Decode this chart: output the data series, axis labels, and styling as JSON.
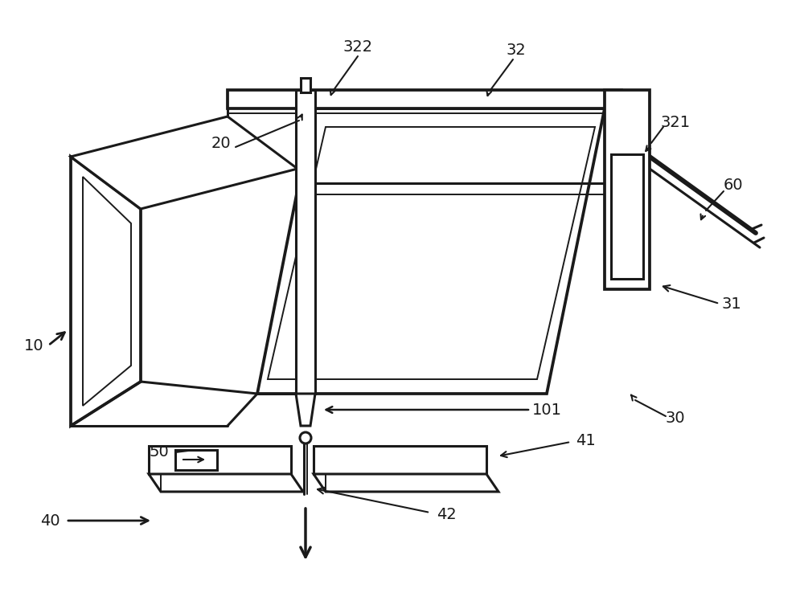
{
  "bg": "#ffffff",
  "lc": "#1a1a1a",
  "lw": 2.2,
  "tlw": 1.4,
  "fs": 14
}
